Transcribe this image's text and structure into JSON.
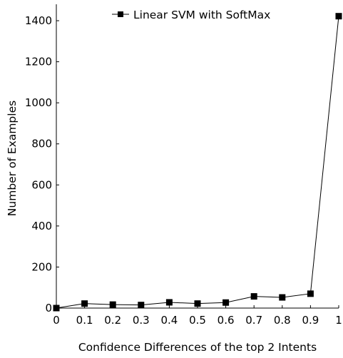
{
  "chart_data": {
    "type": "line",
    "xlabel": "Confidence Differences of the top 2 Intents",
    "ylabel": "Number of Examples",
    "xlim": [
      0,
      1
    ],
    "ylim": [
      0,
      1480
    ],
    "xticks": [
      0,
      0.1,
      0.2,
      0.3,
      0.4,
      0.5,
      0.6,
      0.7,
      0.8,
      0.9,
      1
    ],
    "xtick_labels": [
      "0",
      "0.1",
      "0.2",
      "0.3",
      "0.4",
      "0.5",
      "0.6",
      "0.7",
      "0.8",
      "0.9",
      "1"
    ],
    "yticks": [
      0,
      200,
      400,
      600,
      800,
      1000,
      1200,
      1400
    ],
    "ytick_labels": [
      "0",
      "200",
      "400",
      "600",
      "800",
      "1000",
      "1200",
      "1400"
    ],
    "grid": false,
    "legend_position": "top-center",
    "series": [
      {
        "name": "Linear SVM with SoftMax",
        "marker": "square",
        "color": "#000000",
        "x": [
          0,
          0.1,
          0.2,
          0.3,
          0.4,
          0.5,
          0.6,
          0.7,
          0.8,
          0.9,
          1
        ],
        "values": [
          0,
          22,
          17,
          15,
          28,
          22,
          27,
          57,
          52,
          70,
          1422
        ]
      }
    ]
  }
}
